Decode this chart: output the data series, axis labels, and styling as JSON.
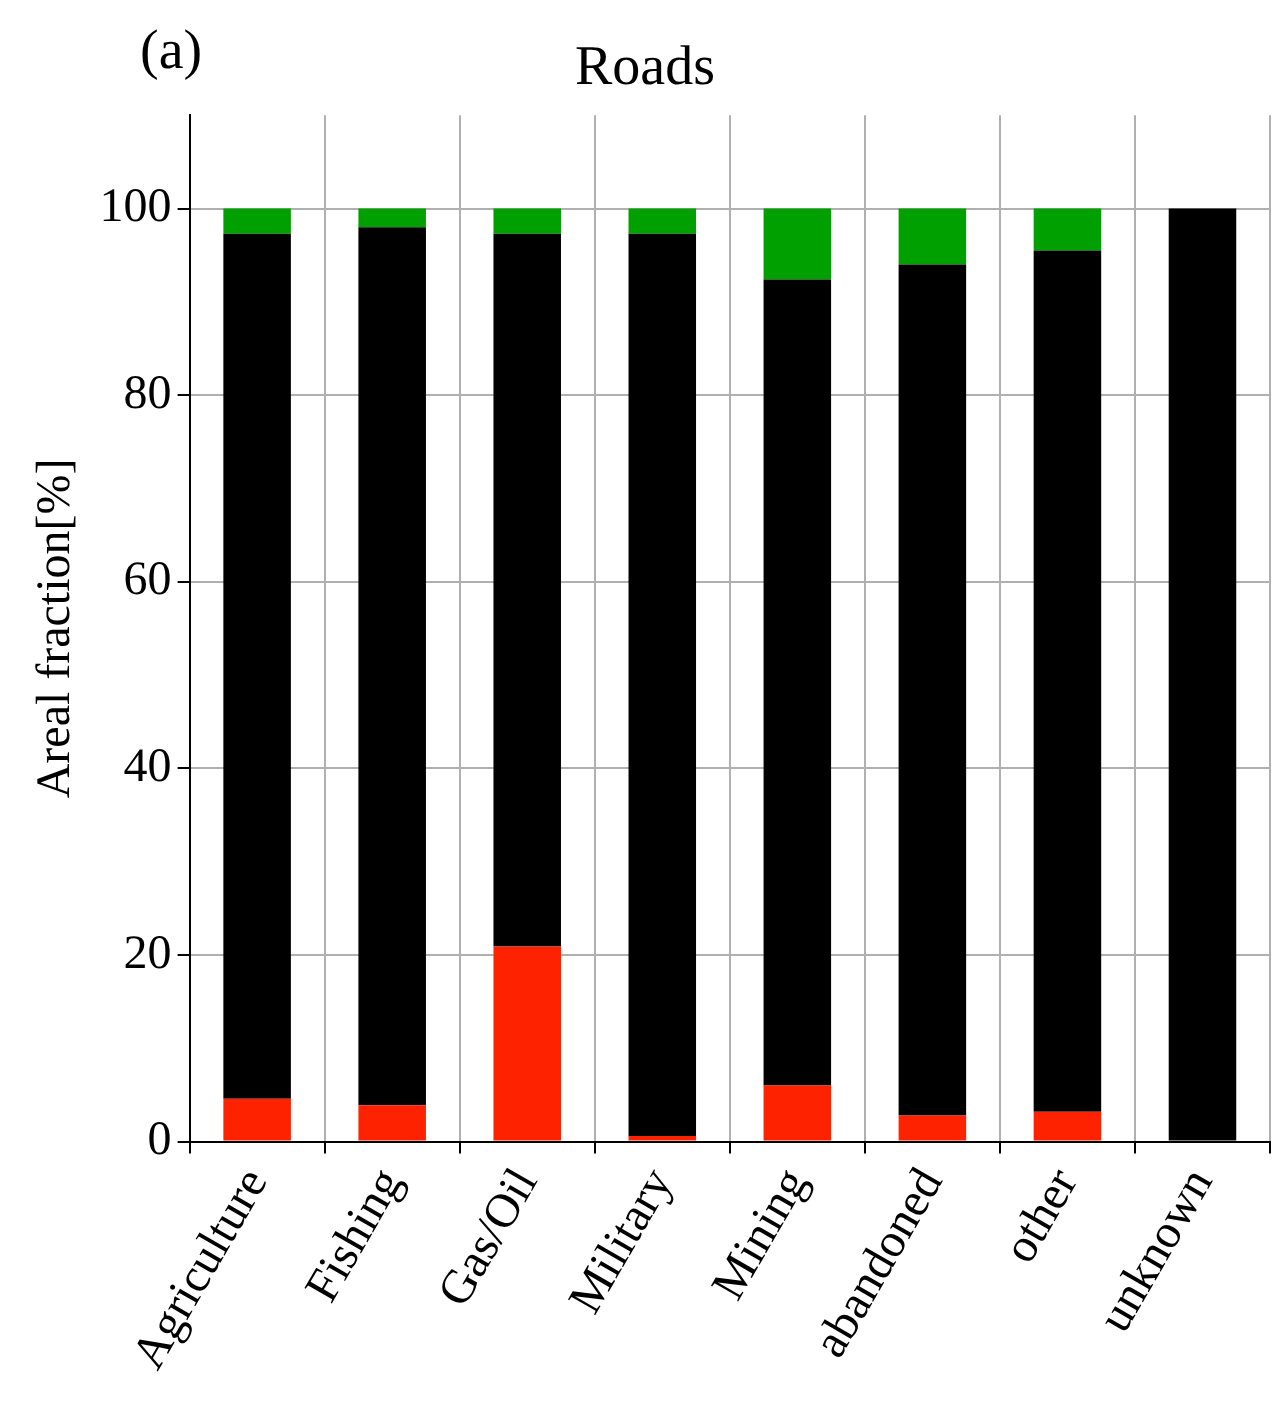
{
  "chart_data": {
    "type": "bar",
    "title": "Roads",
    "ylabel": "Areal fraction[%]",
    "annotations": [
      "(a)"
    ],
    "categories": [
      "Agriculture",
      "Fishing",
      "Gas/Oil",
      "Military",
      "Mining",
      "abandoned",
      "other",
      "unknown"
    ],
    "stacked": true,
    "grid": true,
    "ylim": [
      0,
      110
    ],
    "yticks": [
      0,
      20,
      40,
      60,
      80,
      100
    ],
    "series": [
      {
        "color": "#ff2200",
        "values": [
          4.6,
          3.9,
          20.9,
          0.6,
          6.0,
          2.8,
          3.2,
          0
        ]
      },
      {
        "color": "#000000",
        "values": [
          92.7,
          94.1,
          76.4,
          96.7,
          86.4,
          91.2,
          92.3,
          100
        ]
      },
      {
        "color": "#00a000",
        "values": [
          2.7,
          2.0,
          2.7,
          2.7,
          7.6,
          6.0,
          4.5,
          0
        ]
      }
    ]
  }
}
